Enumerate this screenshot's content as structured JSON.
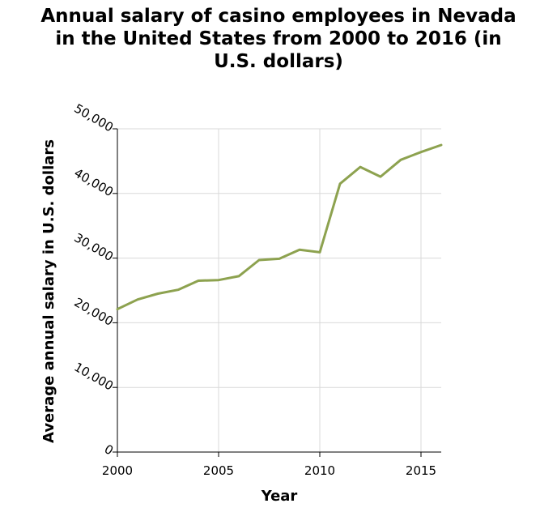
{
  "chart_data": {
    "type": "line",
    "title_lines": [
      "Annual salary of casino employees in Nevada",
      "in the United States from 2000 to 2016 (in",
      "U.S. dollars)"
    ],
    "xlabel": "Year",
    "ylabel": "Average annual salary in U.S. dollars",
    "xlim": [
      2000,
      2016
    ],
    "ylim": [
      0,
      50000
    ],
    "x_ticks": [
      2000,
      2005,
      2010,
      2015
    ],
    "x_tick_labels": [
      "2000",
      "2005",
      "2010",
      "2015"
    ],
    "y_ticks": [
      0,
      10000,
      20000,
      30000,
      40000,
      50000
    ],
    "y_tick_labels": [
      "0",
      "10,000",
      "20,000",
      "30,000",
      "40,000",
      "50,000"
    ],
    "grid": true,
    "line_color": "#8da24f",
    "series": [
      {
        "x": [
          2000,
          2001,
          2002,
          2003,
          2004,
          2005,
          2006,
          2007,
          2008,
          2009,
          2010,
          2011,
          2012,
          2013,
          2014,
          2015,
          2016
        ],
        "values": [
          22100,
          23600,
          24500,
          25100,
          26500,
          26600,
          27200,
          29700,
          29900,
          31300,
          30900,
          41500,
          44100,
          42600,
          45200,
          46400,
          47500
        ]
      }
    ]
  }
}
